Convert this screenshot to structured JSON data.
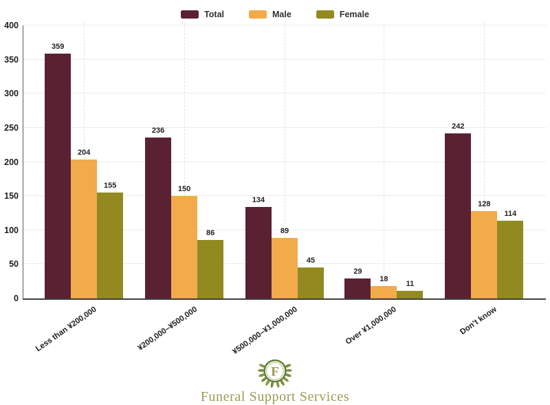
{
  "chart_data": {
    "type": "bar",
    "title": "",
    "xlabel": "",
    "ylabel": "",
    "categories": [
      "Less than ¥200,000",
      "¥200,000–¥500,000",
      "¥500,000–¥1,000,000",
      "Over ¥1,000,000",
      "Don’t know"
    ],
    "series": [
      {
        "name": "Total",
        "color": "#5a2133",
        "values": [
          359,
          236,
          134,
          29,
          242
        ]
      },
      {
        "name": "Male",
        "color": "#f1ab4b",
        "values": [
          204,
          150,
          89,
          18,
          128
        ]
      },
      {
        "name": "Female",
        "color": "#928a20",
        "values": [
          155,
          86,
          45,
          11,
          114
        ]
      }
    ],
    "ylim": [
      0,
      400
    ],
    "yticks": [
      0,
      50,
      100,
      150,
      200,
      250,
      300,
      350,
      400
    ],
    "grid": "horizontal light solid lines at each 50; light dotted vertical line at each category center",
    "legend_position": "top-center",
    "value_labels": "shown above each bar"
  },
  "footer": {
    "brand_name": "Funeral Support Services",
    "monogram": "F"
  }
}
